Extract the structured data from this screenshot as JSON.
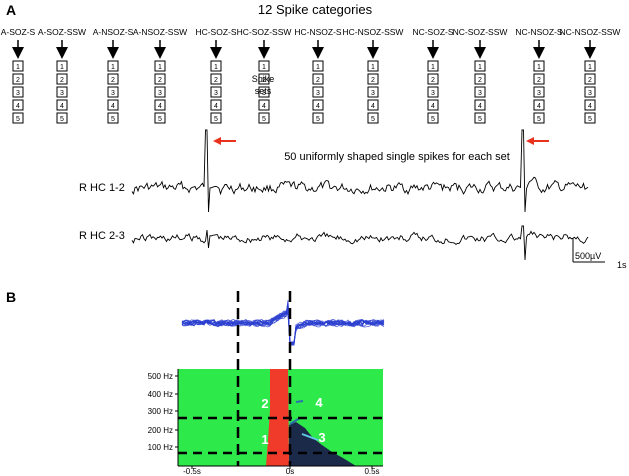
{
  "panel_a": {
    "letter": "A",
    "heading": "12 Spike categories",
    "categories": [
      "A-SOZ-S",
      "A-SOZ-SSW",
      "A-NSOZ-S",
      "A-NSOZ-SSW",
      "HC-SOZ-S",
      "HC-SOZ-SSW",
      "HC-NSOZ-S",
      "HC-NSOZ-SSW",
      "NC-SOZ-S",
      "NC-SOZ-SSW",
      "NC-NSOZ-S",
      "NC-NSOZ-SSW"
    ],
    "set_numbers": [
      "1",
      "2",
      "3",
      "4",
      "5"
    ],
    "spike_sets_label": [
      "Spike",
      "sets"
    ],
    "description": "50 uniformly shaped single spikes for each set",
    "channels": [
      "R HC 1-2",
      "R HC 2-3"
    ],
    "scale_amplitude": "500µV",
    "scale_time": "1s",
    "arrow_color": "#e8321e"
  },
  "panel_b": {
    "letter": "B",
    "freq_labels": [
      "500 Hz",
      "400 Hz",
      "300 Hz",
      "200 Hz",
      "100 Hz"
    ],
    "time_labels": [
      "-0.5s",
      "0s",
      "0.5s"
    ],
    "region_labels": [
      "1",
      "2",
      "3",
      "4"
    ],
    "colors": {
      "background": "#2ee94a",
      "spike_band": "#f03a2a",
      "trace": "#2b3fd0",
      "dark_region": "#1c2a4a"
    }
  }
}
